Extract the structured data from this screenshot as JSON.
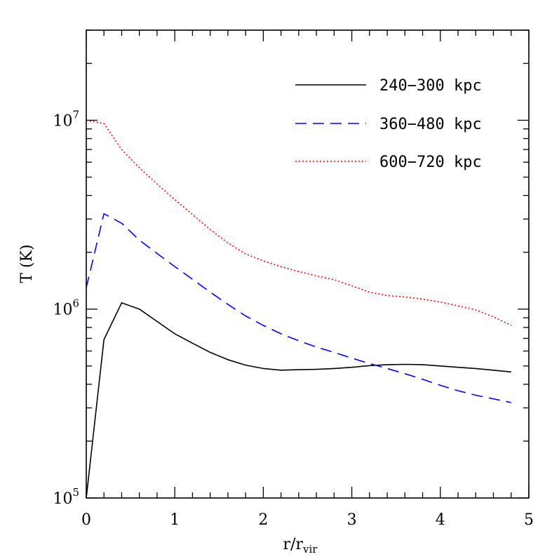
{
  "chart_data": {
    "type": "line",
    "xlabel": "r/r",
    "xlabel_sub": "vir",
    "ylabel": "T (K)",
    "xlim": [
      0,
      5
    ],
    "ylim": [
      100000,
      30000000
    ],
    "yscale": "log",
    "grid": false,
    "legend_position": "top-right",
    "x_ticks": [
      {
        "value": 0,
        "label": "0"
      },
      {
        "value": 1,
        "label": "1"
      },
      {
        "value": 2,
        "label": "2"
      },
      {
        "value": 3,
        "label": "3"
      },
      {
        "value": 4,
        "label": "4"
      },
      {
        "value": 5,
        "label": "5"
      }
    ],
    "y_ticks": [
      {
        "value": 100000,
        "base": "10",
        "exp": "5"
      },
      {
        "value": 1000000,
        "base": "10",
        "exp": "6"
      },
      {
        "value": 10000000,
        "base": "10",
        "exp": "7"
      }
    ],
    "series": [
      {
        "name": "240−300 kpc",
        "color": "#000000",
        "dash": "solid",
        "x": [
          0,
          0.2,
          0.4,
          0.6,
          0.8,
          1.0,
          1.2,
          1.4,
          1.6,
          1.8,
          2.0,
          2.2,
          2.4,
          2.6,
          2.8,
          3.0,
          3.2,
          3.4,
          3.6,
          3.8,
          4.0,
          4.2,
          4.4,
          4.6,
          4.8
        ],
        "y": [
          100000,
          690000,
          1080000,
          1000000,
          860000,
          740000,
          660000,
          590000,
          540000,
          505000,
          485000,
          475000,
          478000,
          480000,
          485000,
          492000,
          502000,
          508000,
          510000,
          508000,
          500000,
          492000,
          485000,
          475000,
          465000
        ]
      },
      {
        "name": "360−480 kpc",
        "color": "#0000ff",
        "dash": "dashed",
        "x": [
          0,
          0.2,
          0.4,
          0.6,
          0.8,
          1.0,
          1.2,
          1.4,
          1.6,
          1.8,
          2.0,
          2.2,
          2.4,
          2.6,
          2.8,
          3.0,
          3.2,
          3.4,
          3.6,
          3.8,
          4.0,
          4.2,
          4.4,
          4.6,
          4.8
        ],
        "y": [
          1300000,
          3200000,
          2850000,
          2320000,
          1970000,
          1680000,
          1440000,
          1230000,
          1060000,
          920000,
          820000,
          740000,
          680000,
          630000,
          590000,
          550000,
          515000,
          485000,
          455000,
          425000,
          395000,
          370000,
          350000,
          335000,
          320000
        ]
      },
      {
        "name": "600−720 kpc",
        "color": "#ff0000",
        "dash": "dotted",
        "x": [
          0,
          0.2,
          0.4,
          0.6,
          0.8,
          1.0,
          1.2,
          1.4,
          1.6,
          1.8,
          2.0,
          2.2,
          2.4,
          2.6,
          2.8,
          3.0,
          3.2,
          3.4,
          3.6,
          3.8,
          4.0,
          4.2,
          4.4,
          4.6,
          4.8
        ],
        "y": [
          10000000,
          9600000,
          7000000,
          5600000,
          4600000,
          3800000,
          3170000,
          2640000,
          2240000,
          1960000,
          1800000,
          1680000,
          1580000,
          1500000,
          1430000,
          1330000,
          1230000,
          1180000,
          1160000,
          1130000,
          1090000,
          1040000,
          990000,
          910000,
          820000
        ]
      }
    ]
  }
}
